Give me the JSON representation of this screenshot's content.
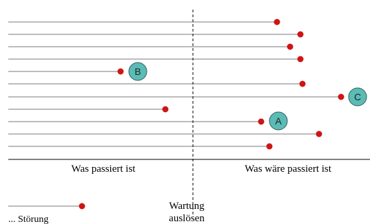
{
  "captions": {
    "past": "Was passiert ist",
    "counterfactual": "Was wäre passiert ist"
  },
  "divider": {
    "line1": "Wartung",
    "line2": "auslösen"
  },
  "legend": {
    "label": "... Störung"
  },
  "callouts": {
    "a": "A",
    "b": "B",
    "c": "C"
  },
  "colors": {
    "line": "#7a7a7a",
    "dot": "#d01414",
    "callout_fill": "#5bbcb6",
    "callout_stroke": "#2f5e5a",
    "axis": "#000000"
  },
  "rows": [
    {
      "failure_mark": "counterfactual"
    },
    {
      "failure_mark": "counterfactual"
    },
    {
      "failure_mark": "counterfactual"
    },
    {
      "failure_mark": "counterfactual"
    },
    {
      "failure_mark": "past",
      "callout": "b"
    },
    {
      "failure_mark": "counterfactual"
    },
    {
      "failure_mark": "counterfactual",
      "callout": "c"
    },
    {
      "failure_mark": "past"
    },
    {
      "failure_mark": "counterfactual",
      "callout": "a"
    },
    {
      "failure_mark": "counterfactual"
    },
    {
      "failure_mark": "counterfactual"
    }
  ]
}
